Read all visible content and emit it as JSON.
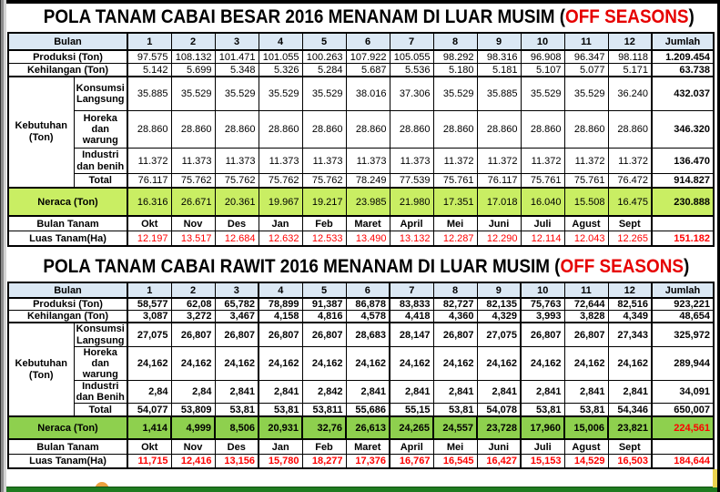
{
  "colors": {
    "header_bg": "#dbe8f4",
    "neraca_besar_bg": "#c9ee63",
    "neraca_rawit_bg": "#8ed04e",
    "highlight_red": "#ff0000",
    "bottom_bar_green": "#1e7b1f",
    "side_strip_yellow": "#ead24e",
    "orange_shape": "#eda13f"
  },
  "tables": [
    {
      "id": "cabai-besar",
      "title": {
        "prefix": "POLA TANAM CABAI BESAR 2016 MENANAM DI LUAR MUSIM (",
        "highlight": "OFF SEASONS",
        "suffix": ")"
      },
      "header": {
        "label": "Bulan",
        "months": [
          "1",
          "2",
          "3",
          "4",
          "5",
          "6",
          "7",
          "8",
          "9",
          "10",
          "11",
          "12"
        ],
        "total_label": "Jumlah"
      },
      "group_label": "Kebutuhan (Ton)",
      "rows": [
        {
          "kind": "data",
          "label": "Produksi (Ton)",
          "values": [
            "97.575",
            "108.132",
            "101.471",
            "101.055",
            "100.263",
            "107.922",
            "105.055",
            "98.292",
            "98.316",
            "96.908",
            "96.347",
            "98.118"
          ],
          "total": "1.209.454"
        },
        {
          "kind": "data",
          "label": "Kehilangan (Ton)",
          "values": [
            "5.142",
            "5.699",
            "5.348",
            "5.326",
            "5.284",
            "5.687",
            "5.536",
            "5.180",
            "5.181",
            "5.107",
            "5.077",
            "5.171"
          ],
          "total": "63.738"
        },
        {
          "kind": "sub",
          "label": "Konsumsi Langsung",
          "values": [
            "35.885",
            "35.529",
            "35.529",
            "35.529",
            "35.529",
            "38.016",
            "37.306",
            "35.529",
            "35.885",
            "35.529",
            "35.529",
            "36.240"
          ],
          "total": "432.037"
        },
        {
          "kind": "sub",
          "label": "Horeka dan warung",
          "values": [
            "28.860",
            "28.860",
            "28.860",
            "28.860",
            "28.860",
            "28.860",
            "28.860",
            "28.860",
            "28.860",
            "28.860",
            "28.860",
            "28.860"
          ],
          "total": "346.320"
        },
        {
          "kind": "sub",
          "label": "Industri dan benih",
          "values": [
            "11.372",
            "11.373",
            "11.373",
            "11.373",
            "11.373",
            "11.373",
            "11.373",
            "11.372",
            "11.372",
            "11.372",
            "11.372",
            "11.372"
          ],
          "total": "136.470"
        },
        {
          "kind": "sub",
          "label": "Total",
          "values": [
            "76.117",
            "75.762",
            "75.762",
            "75.762",
            "75.762",
            "78.249",
            "77.539",
            "75.761",
            "76.117",
            "75.761",
            "75.761",
            "76.472"
          ],
          "total": "914.827"
        },
        {
          "kind": "neraca",
          "label": "Neraca (Ton)",
          "values": [
            "16.316",
            "26.671",
            "20.361",
            "19.967",
            "19.217",
            "23.985",
            "21.980",
            "17.351",
            "17.018",
            "16.040",
            "15.508",
            "16.475"
          ],
          "total": "230.888"
        },
        {
          "kind": "months",
          "label": "Bulan Tanam",
          "values": [
            "Okt",
            "Nov",
            "Des",
            "Jan",
            "Feb",
            "Maret",
            "April",
            "Mei",
            "Juni",
            "Juli",
            "Agust",
            "Sept"
          ],
          "total": ""
        },
        {
          "kind": "luas",
          "label": "Luas Tanam(Ha)",
          "values": [
            "12.197",
            "13.517",
            "12.684",
            "12.632",
            "12.533",
            "13.490",
            "13.132",
            "12.287",
            "12.290",
            "12.114",
            "12.043",
            "12.265"
          ],
          "total": "151.182"
        }
      ]
    },
    {
      "id": "cabai-rawit",
      "title": {
        "prefix": "POLA TANAM CABAI RAWIT 2016 MENANAM DI LUAR MUSIM (",
        "highlight": "OFF SEASONS",
        "suffix": ")"
      },
      "header": {
        "label": "Bulan",
        "months": [
          "1",
          "2",
          "3",
          "4",
          "5",
          "6",
          "7",
          "8",
          "9",
          "10",
          "11",
          "12"
        ],
        "total_label": "Jumlah"
      },
      "group_label": "Kebutuhan (Ton)",
      "rows": [
        {
          "kind": "data",
          "label": "Produksi (Ton)",
          "values": [
            "58,577",
            "62,08",
            "65,782",
            "78,899",
            "91,387",
            "86,878",
            "83,833",
            "82,727",
            "82,135",
            "75,763",
            "72,644",
            "82,516"
          ],
          "total": "923,221"
        },
        {
          "kind": "data",
          "label": "Kehilangan (Ton)",
          "values": [
            "3,087",
            "3,272",
            "3,467",
            "4,158",
            "4,816",
            "4,578",
            "4,418",
            "4,360",
            "4,329",
            "3,993",
            "3,828",
            "4,349"
          ],
          "total": "48,654"
        },
        {
          "kind": "sub",
          "label": "Konsumsi Langsung",
          "values": [
            "27,075",
            "26,807",
            "26,807",
            "26,807",
            "26,807",
            "28,683",
            "28,147",
            "26,807",
            "27,075",
            "26,807",
            "26,807",
            "27,343"
          ],
          "total": "325,972"
        },
        {
          "kind": "sub",
          "label": "Horeka dan warung",
          "values": [
            "24,162",
            "24,162",
            "24,162",
            "24,162",
            "24,162",
            "24,162",
            "24,162",
            "24,162",
            "24,162",
            "24,162",
            "24,162",
            "24,162"
          ],
          "total": "289,944"
        },
        {
          "kind": "sub",
          "label": "Industri dan Benih",
          "values": [
            "2,84",
            "2,84",
            "2,841",
            "2,841",
            "2,842",
            "2,841",
            "2,841",
            "2,841",
            "2,841",
            "2,841",
            "2,841",
            "2,841"
          ],
          "total": "34,091"
        },
        {
          "kind": "sub",
          "label": "Total",
          "values": [
            "54,077",
            "53,809",
            "53,81",
            "53,81",
            "53,811",
            "55,686",
            "55,15",
            "53,81",
            "54,078",
            "53,81",
            "53,81",
            "54,346"
          ],
          "total": "650,007"
        },
        {
          "kind": "neraca",
          "label": "Neraca (Ton)",
          "values": [
            "1,414",
            "4,999",
            "8,506",
            "20,931",
            "32,76",
            "26,613",
            "24,265",
            "24,557",
            "23,728",
            "17,960",
            "15,006",
            "23,821"
          ],
          "total": "224,561"
        },
        {
          "kind": "months",
          "label": "Bulan Tanam",
          "values": [
            "Okt",
            "Nov",
            "Des",
            "Jan",
            "Feb",
            "Maret",
            "April",
            "Mei",
            "Juni",
            "Juli",
            "Agust",
            "Sept"
          ],
          "total": ""
        },
        {
          "kind": "luas",
          "label": "Luas Tanam(Ha)",
          "values": [
            "11,715",
            "12,416",
            "13,156",
            "15,780",
            "18,277",
            "17,376",
            "16,767",
            "16,545",
            "16,427",
            "15,153",
            "14,529",
            "16,503"
          ],
          "total": "184,644"
        }
      ]
    }
  ]
}
